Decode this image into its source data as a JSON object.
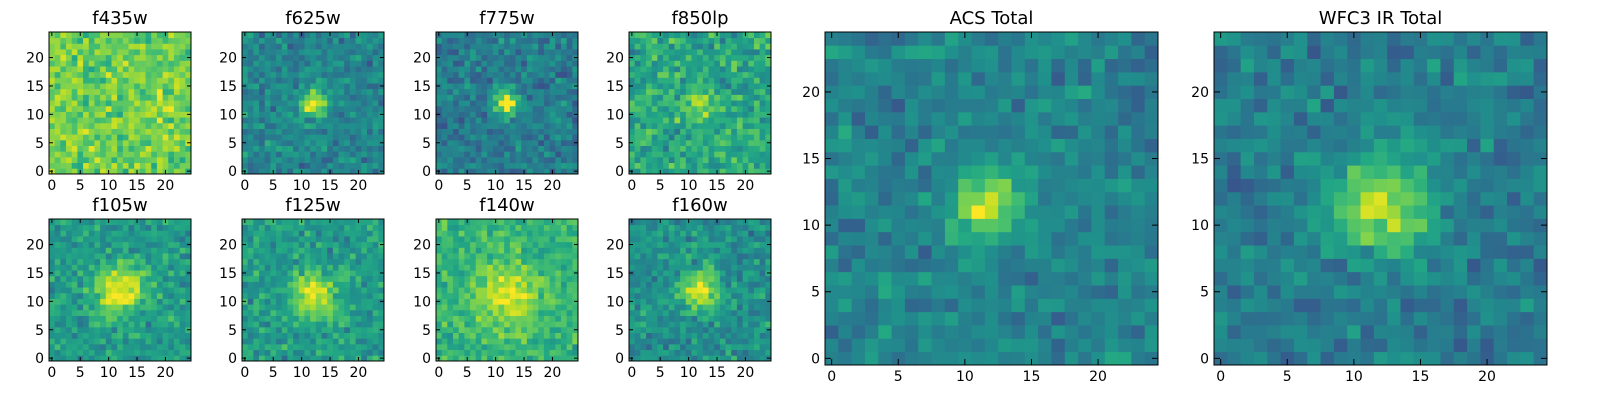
{
  "chart_data": [
    {
      "type": "heatmap",
      "title": "f435w",
      "colormap": "viridis",
      "grid_size": 25,
      "xlim": [
        -0.5,
        24.5
      ],
      "ylim": [
        -0.5,
        24.5
      ],
      "xticks": [
        0,
        5,
        10,
        15,
        20
      ],
      "yticks": [
        0,
        5,
        10,
        15,
        20
      ],
      "source": {
        "x": 12,
        "y": 12,
        "strength": 0.0,
        "width": 3.0
      },
      "background_level": 0.78,
      "noise": 0.15
    },
    {
      "type": "heatmap",
      "title": "f625w",
      "colormap": "viridis",
      "grid_size": 25,
      "xlim": [
        -0.5,
        24.5
      ],
      "ylim": [
        -0.5,
        24.5
      ],
      "xticks": [
        0,
        5,
        10,
        15,
        20
      ],
      "yticks": [
        0,
        5,
        10,
        15,
        20
      ],
      "source": {
        "x": 12,
        "y": 12,
        "strength": 0.55,
        "width": 1.6
      },
      "background_level": 0.45,
      "noise": 0.14
    },
    {
      "type": "heatmap",
      "title": "f775w",
      "colormap": "viridis",
      "grid_size": 25,
      "xlim": [
        -0.5,
        24.5
      ],
      "ylim": [
        -0.5,
        24.5
      ],
      "xticks": [
        0,
        5,
        10,
        15,
        20
      ],
      "yticks": [
        0,
        5,
        10,
        15,
        20
      ],
      "source": {
        "x": 12,
        "y": 12,
        "strength": 0.55,
        "width": 1.6
      },
      "background_level": 0.42,
      "noise": 0.14
    },
    {
      "type": "heatmap",
      "title": "f850lp",
      "colormap": "viridis",
      "grid_size": 25,
      "xlim": [
        -0.5,
        24.5
      ],
      "ylim": [
        -0.5,
        24.5
      ],
      "xticks": [
        0,
        5,
        10,
        15,
        20
      ],
      "yticks": [
        0,
        5,
        10,
        15,
        20
      ],
      "source": {
        "x": 12,
        "y": 12,
        "strength": 0.35,
        "width": 1.8
      },
      "background_level": 0.6,
      "noise": 0.17
    },
    {
      "type": "heatmap",
      "title": "f105w",
      "colormap": "viridis",
      "grid_size": 25,
      "xlim": [
        -0.5,
        24.5
      ],
      "ylim": [
        -0.5,
        24.5
      ],
      "xticks": [
        0,
        5,
        10,
        15,
        20
      ],
      "yticks": [
        0,
        5,
        10,
        15,
        20
      ],
      "source": {
        "x": 12,
        "y": 12,
        "strength": 0.45,
        "width": 3.0
      },
      "background_level": 0.55,
      "noise": 0.14
    },
    {
      "type": "heatmap",
      "title": "f125w",
      "colormap": "viridis",
      "grid_size": 25,
      "xlim": [
        -0.5,
        24.5
      ],
      "ylim": [
        -0.5,
        24.5
      ],
      "xticks": [
        0,
        5,
        10,
        15,
        20
      ],
      "yticks": [
        0,
        5,
        10,
        15,
        20
      ],
      "source": {
        "x": 12,
        "y": 11,
        "strength": 0.4,
        "width": 2.8
      },
      "background_level": 0.55,
      "noise": 0.14
    },
    {
      "type": "heatmap",
      "title": "f140w",
      "colormap": "viridis",
      "grid_size": 25,
      "xlim": [
        -0.5,
        24.5
      ],
      "ylim": [
        -0.5,
        24.5
      ],
      "xticks": [
        0,
        5,
        10,
        15,
        20
      ],
      "yticks": [
        0,
        5,
        10,
        15,
        20
      ],
      "source": {
        "x": 12,
        "y": 11,
        "strength": 0.3,
        "width": 4.0
      },
      "background_level": 0.65,
      "noise": 0.12
    },
    {
      "type": "heatmap",
      "title": "f160w",
      "colormap": "viridis",
      "grid_size": 25,
      "xlim": [
        -0.5,
        24.5
      ],
      "ylim": [
        -0.5,
        24.5
      ],
      "xticks": [
        0,
        5,
        10,
        15,
        20
      ],
      "yticks": [
        0,
        5,
        10,
        15,
        20
      ],
      "source": {
        "x": 12,
        "y": 12,
        "strength": 0.45,
        "width": 2.4
      },
      "background_level": 0.5,
      "noise": 0.14
    },
    {
      "type": "heatmap",
      "title": "ACS Total",
      "colormap": "viridis",
      "grid_size": 25,
      "xlim": [
        -0.5,
        24.5
      ],
      "ylim": [
        -0.5,
        24.5
      ],
      "xticks": [
        0,
        5,
        10,
        15,
        20
      ],
      "yticks": [
        0,
        5,
        10,
        15,
        20
      ],
      "source": {
        "x": 11.5,
        "y": 11.5,
        "strength": 0.5,
        "width": 1.7
      },
      "background_level": 0.45,
      "noise": 0.12
    },
    {
      "type": "heatmap",
      "title": "WFC3 IR Total",
      "colormap": "viridis",
      "grid_size": 25,
      "xlim": [
        -0.5,
        24.5
      ],
      "ylim": [
        -0.5,
        24.5
      ],
      "xticks": [
        0,
        5,
        10,
        15,
        20
      ],
      "yticks": [
        0,
        5,
        10,
        15,
        20
      ],
      "source": {
        "x": 12,
        "y": 11.5,
        "strength": 0.5,
        "width": 2.6
      },
      "background_level": 0.42,
      "noise": 0.12
    }
  ]
}
